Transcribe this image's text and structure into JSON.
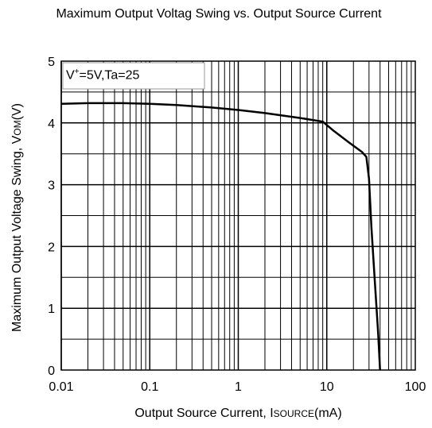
{
  "chart_data": {
    "type": "line",
    "title": "Maximum Output Voltag Swing vs. Output Source Current",
    "xlabel": {
      "main": "Output Source Current, I",
      "sub": "SOURCE",
      "unit": "(mA)"
    },
    "ylabel": {
      "main": "Maximum Output Voltage Swing, V",
      "sub": "OM",
      "unit": "(V)"
    },
    "x_scale": "log",
    "xlim": [
      0.01,
      100
    ],
    "ylim": [
      0,
      5
    ],
    "x_ticks": [
      "0.01",
      "0.1",
      "1",
      "10",
      "100"
    ],
    "y_ticks": [
      "0",
      "1",
      "2",
      "3",
      "4",
      "5"
    ],
    "grid": true,
    "annotation": {
      "prefix": "V",
      "sup": "+",
      "text": "=5V,Ta=25"
    },
    "series": [
      {
        "x": [
          0.01,
          0.02,
          0.05,
          0.1,
          0.2,
          0.5,
          1,
          2,
          5,
          9,
          12,
          18,
          25,
          28,
          30,
          32,
          35,
          38,
          40
        ],
        "y": [
          4.31,
          4.32,
          4.32,
          4.31,
          4.29,
          4.25,
          4.21,
          4.16,
          4.08,
          4.02,
          3.87,
          3.68,
          3.53,
          3.45,
          3.1,
          2.3,
          1.4,
          0.6,
          0
        ]
      }
    ]
  }
}
